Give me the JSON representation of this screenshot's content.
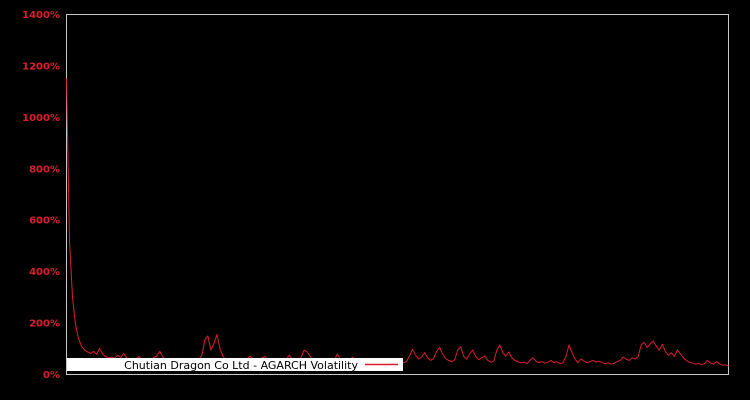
{
  "chart_data": {
    "type": "line",
    "title": "",
    "xlabel": "",
    "ylabel": "",
    "legend": "Chutian Dragon Co Ltd - AGARCH Volatility",
    "legend_position": "bottom-left-inside",
    "unit": "%",
    "ylim": [
      0,
      1400
    ],
    "ytick_labels": [
      "0%",
      "200%",
      "400%",
      "600%",
      "800%",
      "1000%",
      "1200%",
      "1400%"
    ],
    "ytick_values": [
      0,
      200,
      400,
      600,
      800,
      1000,
      1200,
      1400
    ],
    "xtick_labels": [],
    "grid": "off",
    "colors": {
      "background": "#000000",
      "line": "#dc1f2e",
      "axis_label": "#dc1f2e",
      "plot_border": "#c8c8c8",
      "legend_background": "#ffffff",
      "legend_text": "#000000"
    },
    "values_are_percent": true,
    "values": [
      1150,
      520,
      300,
      195,
      140,
      110,
      95,
      88,
      82,
      90,
      78,
      102,
      80,
      70,
      65,
      68,
      62,
      75,
      66,
      82,
      64,
      60,
      63,
      58,
      70,
      60,
      56,
      62,
      58,
      66,
      72,
      90,
      68,
      60,
      57,
      62,
      55,
      58,
      52,
      60,
      55,
      58,
      52,
      56,
      60,
      75,
      135,
      150,
      95,
      120,
      155,
      100,
      70,
      58,
      52,
      56,
      50,
      54,
      48,
      55,
      60,
      72,
      58,
      52,
      56,
      65,
      70,
      55,
      50,
      54,
      48,
      52,
      47,
      58,
      75,
      60,
      52,
      55,
      68,
      95,
      88,
      70,
      56,
      50,
      54,
      48,
      52,
      46,
      50,
      55,
      80,
      62,
      52,
      48,
      52,
      68,
      55,
      48,
      44,
      48,
      42,
      46,
      40,
      44,
      48,
      42,
      38,
      42,
      45,
      40,
      44,
      42,
      46,
      50,
      72,
      98,
      75,
      60,
      68,
      85,
      65,
      55,
      62,
      90,
      105,
      80,
      62,
      55,
      50,
      58,
      95,
      108,
      70,
      60,
      80,
      95,
      70,
      58,
      65,
      72,
      55,
      48,
      52,
      95,
      115,
      85,
      70,
      88,
      65,
      55,
      50,
      45,
      48,
      42,
      55,
      65,
      52,
      46,
      50,
      44,
      48,
      55,
      45,
      50,
      42,
      46,
      70,
      115,
      85,
      60,
      46,
      60,
      52,
      46,
      50,
      55,
      48,
      52,
      46,
      42,
      46,
      40,
      44,
      50,
      55,
      68,
      60,
      55,
      65,
      60,
      70,
      115,
      125,
      105,
      120,
      130,
      110,
      95,
      118,
      90,
      75,
      85,
      70,
      95,
      80,
      65,
      55,
      48,
      44,
      40,
      44,
      38,
      42,
      55,
      45,
      40,
      50,
      42,
      36,
      38,
      34
    ]
  }
}
